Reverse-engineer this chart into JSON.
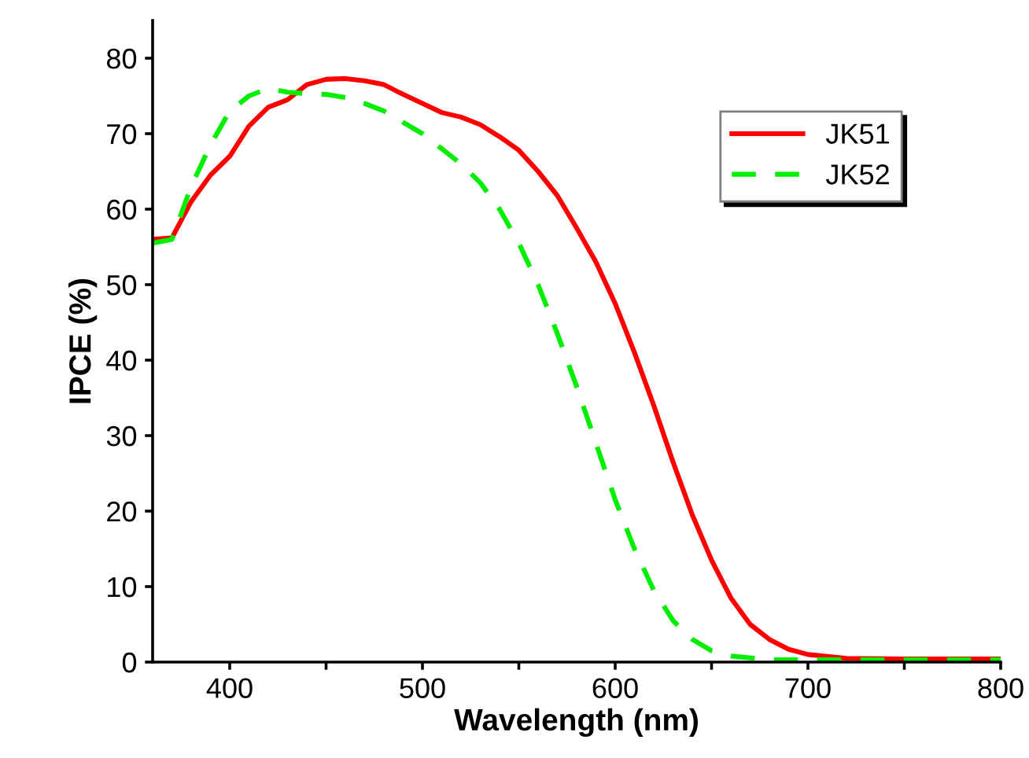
{
  "chart_data": {
    "type": "line",
    "xlabel": "Wavelength (nm)",
    "ylabel": "IPCE (%)",
    "xlim": [
      360,
      800
    ],
    "ylim": [
      0,
      85
    ],
    "xticks": [
      400,
      {
        "value": 450,
        "label": null
      },
      500,
      {
        "value": 550,
        "label": null
      },
      600,
      {
        "value": 650,
        "label": null
      },
      700,
      {
        "value": 750,
        "label": null
      },
      800
    ],
    "yticks": [
      0,
      10,
      20,
      30,
      40,
      50,
      60,
      70,
      80
    ],
    "legend": "top right",
    "grid": false,
    "series": [
      {
        "name": "JK51",
        "color": "#ff0000",
        "line_style": "solid",
        "x": [
          360,
          370,
          380,
          390,
          400,
          410,
          420,
          430,
          440,
          450,
          460,
          470,
          480,
          490,
          500,
          510,
          520,
          530,
          540,
          550,
          560,
          570,
          580,
          590,
          600,
          610,
          620,
          630,
          640,
          650,
          660,
          670,
          680,
          690,
          700,
          720,
          750,
          800
        ],
        "values": [
          56,
          56.2,
          61,
          64.5,
          67,
          71,
          73.5,
          74.5,
          76.5,
          77.2,
          77.3,
          77,
          76.5,
          75.2,
          74,
          72.8,
          72.2,
          71.2,
          69.6,
          67.8,
          65,
          61.8,
          57.5,
          53,
          47.5,
          41,
          34,
          26.5,
          19.5,
          13.5,
          8.5,
          5,
          3,
          1.7,
          1,
          0.5,
          0.4,
          0.4
        ]
      },
      {
        "name": "JK52",
        "color": "#00ee00",
        "line_style": "dashed",
        "x": [
          360,
          370,
          380,
          390,
          400,
          410,
          420,
          430,
          440,
          450,
          460,
          470,
          480,
          490,
          500,
          510,
          520,
          530,
          540,
          550,
          560,
          570,
          580,
          590,
          600,
          610,
          620,
          630,
          640,
          650,
          660,
          680,
          700,
          800
        ],
        "values": [
          55.5,
          56,
          63,
          68.5,
          73,
          75,
          76,
          75.5,
          75.3,
          75.2,
          74.8,
          74,
          73,
          71.5,
          70,
          68,
          66,
          63.5,
          60,
          55.5,
          50,
          43.5,
          36.5,
          29,
          21.5,
          15,
          9.5,
          5.5,
          3,
          1.5,
          0.8,
          0.3,
          0.3,
          0.3
        ]
      }
    ]
  }
}
